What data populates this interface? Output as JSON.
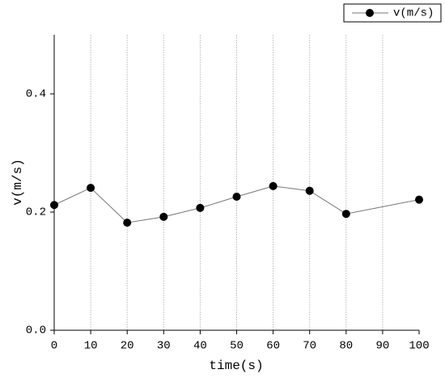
{
  "chart_data": {
    "type": "line",
    "x_label": "time(s)",
    "y_label": "v(m/s)",
    "x": [
      0,
      10,
      20,
      30,
      40,
      50,
      60,
      70,
      80,
      100
    ],
    "series": [
      {
        "name": "v(m/s)",
        "color": "#000000",
        "values": [
          0.212,
          0.241,
          0.182,
          0.192,
          0.207,
          0.226,
          0.244,
          0.236,
          0.197,
          0.221
        ]
      }
    ],
    "xlim": [
      0,
      100
    ],
    "xticks": [
      0,
      10,
      20,
      30,
      40,
      50,
      60,
      70,
      80,
      90,
      100
    ],
    "ylim": [
      0,
      0.5
    ],
    "yticks": [
      {
        "value": 0,
        "label": "0.0"
      },
      0.2,
      0.4
    ],
    "grid": true,
    "legend": "top-right"
  }
}
